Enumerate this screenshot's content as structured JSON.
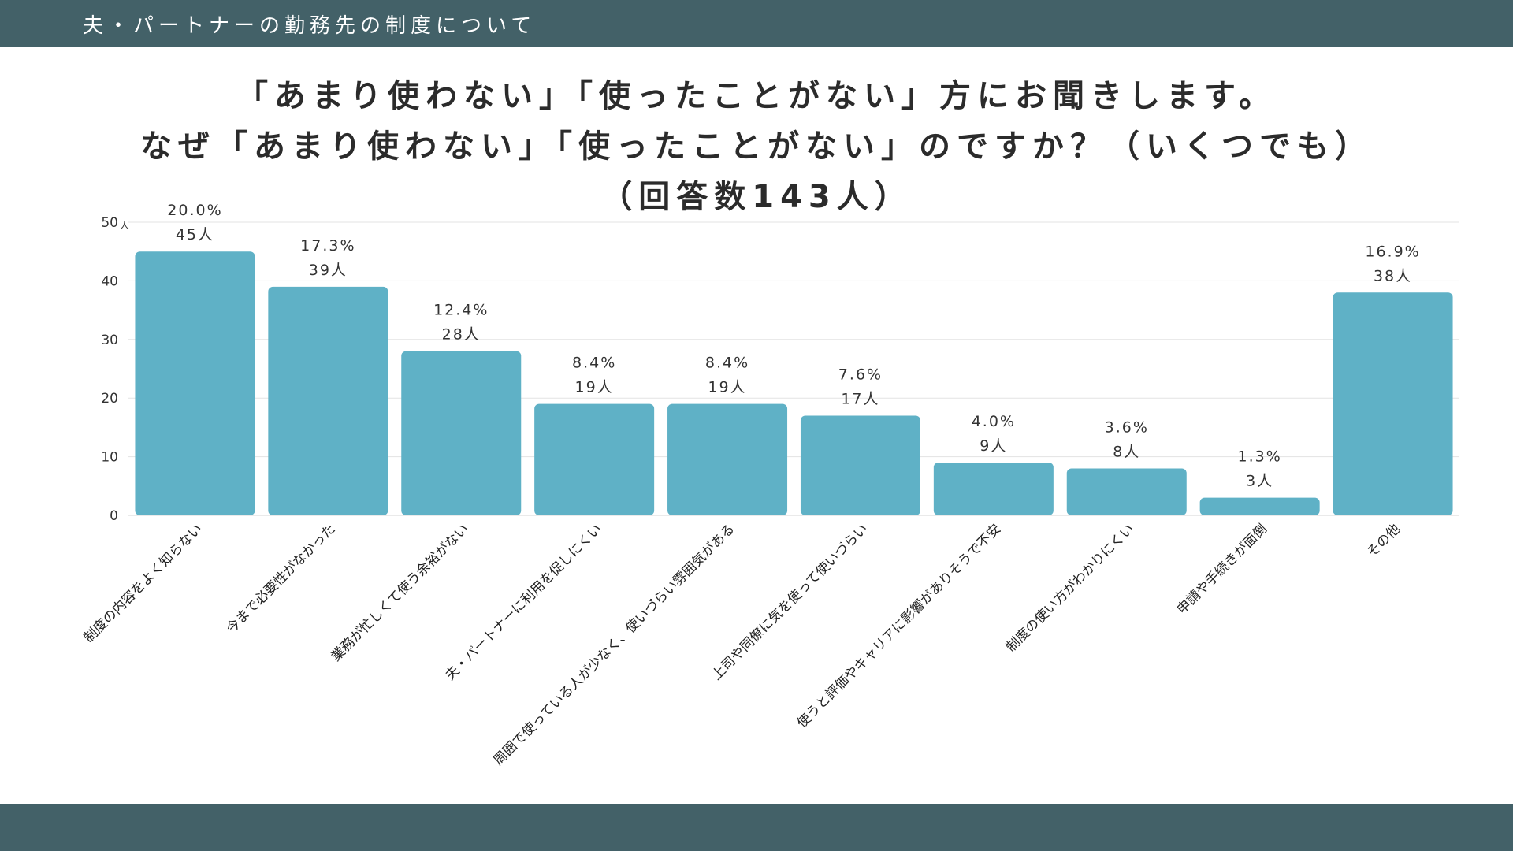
{
  "header": {
    "title": "夫・パートナーの勤務先の制度について"
  },
  "chart_data": {
    "type": "bar",
    "title_lines": [
      "「あまり使わない」「使ったことがない」方にお聞きします。",
      "なぜ「あまり使わない」「使ったことがない」のですか？（いくつでも）",
      "（回答数143人）"
    ],
    "categories": [
      "制度の内容をよく知らない",
      "今まで必要性がなかった",
      "業務が忙しくて使う余裕がない",
      "夫・パートナーに利用を促しにくい",
      "周囲で使っている人が少なく、使いづらい雰囲気がある",
      "上司や同僚に気を使って使いづらい",
      "使うと評価やキャリアに影響がありそうで不安",
      "制度の使い方がわかりにくい",
      "申請や手続きが面倒",
      "その他"
    ],
    "values": [
      45,
      39,
      28,
      19,
      19,
      17,
      9,
      8,
      3,
      38
    ],
    "percent_labels": [
      "20.0%",
      "17.3%",
      "12.4%",
      "8.4%",
      "8.4%",
      "7.6%",
      "4.0%",
      "3.6%",
      "1.3%",
      "16.9%"
    ],
    "count_labels": [
      "45人",
      "39人",
      "28人",
      "19人",
      "19人",
      "17人",
      "9人",
      "8人",
      "3人",
      "38人"
    ],
    "y_ticks": [
      "0",
      "10",
      "20",
      "30",
      "40",
      "50"
    ],
    "y_tick_values": [
      0,
      10,
      20,
      30,
      40,
      50
    ],
    "y_unit": "人",
    "ylim": [
      0,
      50
    ],
    "grid": true,
    "bar_color": "#5fb1c6",
    "text_color": "#333333",
    "grid_color": "#e3e3e3"
  }
}
